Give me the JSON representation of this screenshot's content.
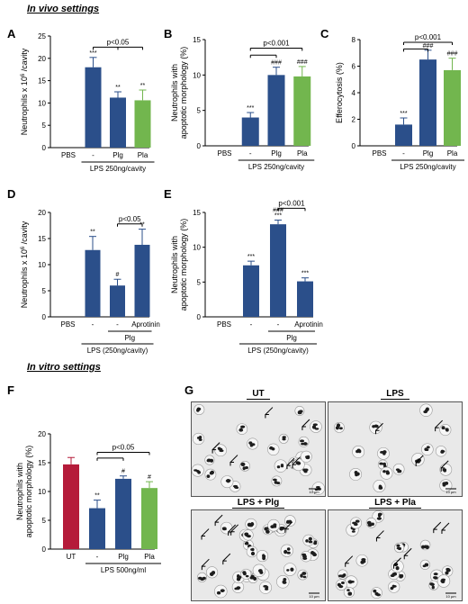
{
  "sections": {
    "invivo": "In vivo settings",
    "invitro": "In vitro settings"
  },
  "colors": {
    "navy": "#2b4f8a",
    "green": "#72b64e",
    "red": "#b51b3a",
    "black": "#000000"
  },
  "chart_data": [
    {
      "panel": "A",
      "type": "bar",
      "ylabel": "Neutrophils x 10^6 /cavity",
      "ylim": [
        0,
        25
      ],
      "yticks": [
        0,
        5,
        10,
        15,
        20,
        25
      ],
      "categories": [
        "PBS",
        "-",
        "Plg",
        "Pla"
      ],
      "values": [
        0,
        18,
        11.2,
        10.6
      ],
      "errors": [
        0,
        2.2,
        1.3,
        2.3
      ],
      "colors": [
        "#2b4f8a",
        "#2b4f8a",
        "#2b4f8a",
        "#72b64e"
      ],
      "stars": [
        "",
        "***",
        "**",
        "**"
      ],
      "group_label": "LPS 250ng/cavity",
      "group_range": [
        1,
        3
      ],
      "brackets": [
        {
          "from": 1,
          "to": 3,
          "y": 22.5,
          "label": "p<0.05",
          "ticks": [
            1,
            2,
            3
          ]
        }
      ]
    },
    {
      "panel": "B",
      "type": "bar",
      "ylabel": "Neutrophils with apoptotic morphology (%)",
      "ylim": [
        0,
        15
      ],
      "yticks": [
        0,
        5,
        10,
        15
      ],
      "categories": [
        "PBS",
        "-",
        "Plg",
        "Pla"
      ],
      "values": [
        0,
        4,
        10,
        9.8
      ],
      "errors": [
        0,
        0.7,
        1.1,
        1.4
      ],
      "colors": [
        "#2b4f8a",
        "#2b4f8a",
        "#2b4f8a",
        "#72b64e"
      ],
      "stars": [
        "",
        "***",
        "###",
        "###"
      ],
      "group_label": "LPS 250ng/cavity",
      "group_range": [
        1,
        3
      ],
      "brackets": [
        {
          "from": 1,
          "to": 3,
          "y": 13.8,
          "label": "p<0.001",
          "ticks": [
            1,
            3
          ]
        },
        {
          "from": 1,
          "to": 2,
          "y": 12.8,
          "label": "",
          "ticks": [
            1,
            2
          ]
        }
      ]
    },
    {
      "panel": "C",
      "type": "bar",
      "ylabel": "Efferocytosis (%)",
      "ylim": [
        0,
        8
      ],
      "yticks": [
        0,
        2,
        4,
        6,
        8
      ],
      "categories": [
        "PBS",
        "-",
        "Plg",
        "Pla"
      ],
      "values": [
        0,
        1.6,
        6.5,
        5.7
      ],
      "errors": [
        0,
        0.5,
        0.7,
        0.9
      ],
      "colors": [
        "#2b4f8a",
        "#2b4f8a",
        "#2b4f8a",
        "#72b64e"
      ],
      "stars": [
        "",
        "***",
        "###",
        "###"
      ],
      "group_label": "LPS 250ng/cavity",
      "group_range": [
        1,
        3
      ],
      "brackets": [
        {
          "from": 1,
          "to": 3,
          "y": 7.8,
          "label": "p<0.001",
          "ticks": [
            1,
            3
          ]
        },
        {
          "from": 1,
          "to": 2,
          "y": 7.3,
          "label": "",
          "ticks": [
            1,
            2
          ]
        }
      ]
    },
    {
      "panel": "D",
      "type": "bar",
      "ylabel": "Neutrophils x 10^6 /cavity",
      "ylim": [
        0,
        20
      ],
      "yticks": [
        0,
        5,
        10,
        15,
        20
      ],
      "categories": [
        "PBS",
        "-",
        "-",
        "Aprotinin"
      ],
      "values": [
        0,
        12.8,
        6,
        13.8
      ],
      "errors": [
        0,
        2.6,
        1.2,
        3
      ],
      "colors": [
        "#2b4f8a",
        "#2b4f8a",
        "#2b4f8a",
        "#2b4f8a"
      ],
      "stars": [
        "",
        "**",
        "#",
        "**"
      ],
      "group_label": "LPS (250ng/cavity)",
      "group_range": [
        1,
        3
      ],
      "sub_label": "Plg",
      "sub_range": [
        2,
        3
      ],
      "brackets": [
        {
          "from": 2,
          "to": 3,
          "y": 17.8,
          "label": "p<0.05",
          "ticks": [
            2,
            3
          ]
        }
      ]
    },
    {
      "panel": "E",
      "type": "bar",
      "ylabel": "Neutrophils with apoptotic morphology (%)",
      "ylim": [
        0,
        15
      ],
      "yticks": [
        0,
        5,
        10,
        15
      ],
      "categories": [
        "PBS",
        "-",
        "-",
        "Aprotinin"
      ],
      "values": [
        0,
        7.4,
        13.3,
        5.1
      ],
      "errors": [
        0,
        0.6,
        0.6,
        0.5
      ],
      "colors": [
        "#2b4f8a",
        "#2b4f8a",
        "#2b4f8a",
        "#2b4f8a"
      ],
      "stars": [
        "",
        "***",
        "###\n***",
        "***"
      ],
      "group_label": "LPS (250ng/cavity)",
      "group_range": [
        1,
        3
      ],
      "sub_label": "Plg",
      "sub_range": [
        2,
        3
      ],
      "brackets": [
        {
          "from": 2,
          "to": 3,
          "y": 15.6,
          "label": "p<0.001",
          "ticks": [
            2,
            3
          ]
        }
      ]
    },
    {
      "panel": "F",
      "type": "bar",
      "ylabel": "Neutrophils with apoptotic morphology (%)",
      "ylim": [
        0,
        20
      ],
      "yticks": [
        0,
        5,
        10,
        15,
        20
      ],
      "categories": [
        "UT",
        "-",
        "Plg",
        "Pla"
      ],
      "values": [
        14.7,
        7.1,
        12.2,
        10.6
      ],
      "errors": [
        1.2,
        1.4,
        0.5,
        1.1
      ],
      "colors": [
        "#b51b3a",
        "#2b4f8a",
        "#2b4f8a",
        "#72b64e"
      ],
      "stars": [
        "",
        "**",
        "#",
        "#"
      ],
      "group_label": "LPS 500ng/ml",
      "group_range": [
        1,
        3
      ],
      "brackets": [
        {
          "from": 1,
          "to": 3,
          "y": 16.8,
          "label": "p<0.05",
          "ticks": [
            1,
            3
          ]
        },
        {
          "from": 1,
          "to": 2,
          "y": 15.8,
          "label": "",
          "ticks": [
            1,
            2
          ]
        }
      ]
    }
  ],
  "panel_G": {
    "label": "G",
    "titles": [
      "UT",
      "LPS",
      "LPS + Plg",
      "LPS + Pla"
    ],
    "scale_bar": "10 µm"
  }
}
